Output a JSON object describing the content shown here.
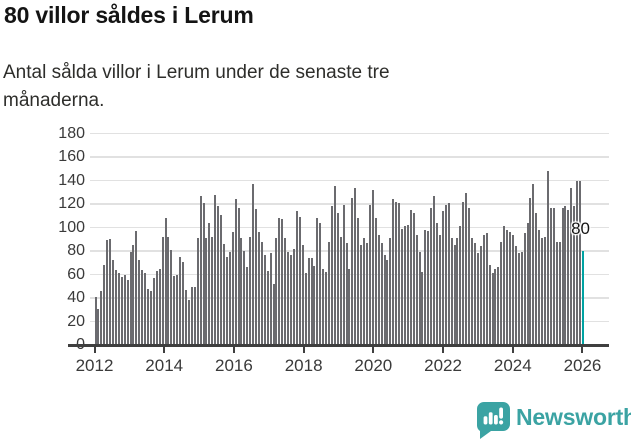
{
  "header": {
    "title": "80 villor såldes i Lerum",
    "subtitle_lines": [
      "Antal sålda villor i Lerum under de senaste tre",
      "månaderna."
    ]
  },
  "chart_data": {
    "type": "bar",
    "title": "80 villor såldes i Lerum",
    "xlabel": "",
    "ylabel": "",
    "granularity": "monthly",
    "x_start_year": 2012,
    "ylim": [
      0,
      180
    ],
    "y_tick_labels": [
      "0",
      "20",
      "40",
      "60",
      "80",
      "100",
      "120",
      "140",
      "160",
      "180"
    ],
    "x_tick_labels": [
      "2012",
      "2014",
      "2016",
      "2018",
      "2020",
      "2022",
      "2024",
      "2026"
    ],
    "grid": "horizontal",
    "last_value_label": "80",
    "values": [
      41,
      31,
      46,
      68,
      89,
      90,
      72,
      64,
      61,
      58,
      60,
      55,
      79,
      85,
      97,
      72,
      64,
      61,
      48,
      46,
      57,
      63,
      65,
      92,
      108,
      92,
      81,
      59,
      60,
      75,
      71,
      47,
      38,
      49,
      49,
      91,
      127,
      121,
      91,
      104,
      92,
      128,
      118,
      111,
      86,
      75,
      79,
      96,
      124,
      117,
      91,
      80,
      66,
      92,
      137,
      116,
      96,
      88,
      77,
      63,
      78,
      52,
      91,
      108,
      107,
      91,
      79,
      77,
      82,
      114,
      109,
      85,
      61,
      74,
      74,
      67,
      108,
      104,
      65,
      62,
      88,
      118,
      135,
      112,
      92,
      119,
      87,
      65,
      125,
      134,
      108,
      85,
      91,
      87,
      119,
      132,
      108,
      94,
      87,
      77,
      72,
      91,
      124,
      122,
      121,
      99,
      101,
      102,
      115,
      112,
      94,
      79,
      62,
      98,
      97,
      117,
      127,
      104,
      94,
      114,
      119,
      121,
      91,
      85,
      91,
      101,
      122,
      129,
      117,
      91,
      87,
      78,
      84,
      94,
      95,
      68,
      61,
      65,
      66,
      88,
      101,
      98,
      96,
      94,
      84,
      78,
      79,
      95,
      104,
      125,
      137,
      112,
      98,
      91,
      92,
      148,
      117,
      117,
      88,
      88,
      117,
      118,
      115,
      134,
      118,
      140,
      140,
      80
    ],
    "highlight_last_bar": true,
    "colors": {
      "bar": "#6b6b6f",
      "highlight_bar": "#00a2a2",
      "gridline": "#e1e1e1",
      "axis": "#3f3f3f"
    }
  },
  "footer": {
    "brand": "Newsworthy",
    "logo_icon": "newsworthy-speech-bubble-bar-chart-icon",
    "brand_color": "#3ba3a3"
  }
}
